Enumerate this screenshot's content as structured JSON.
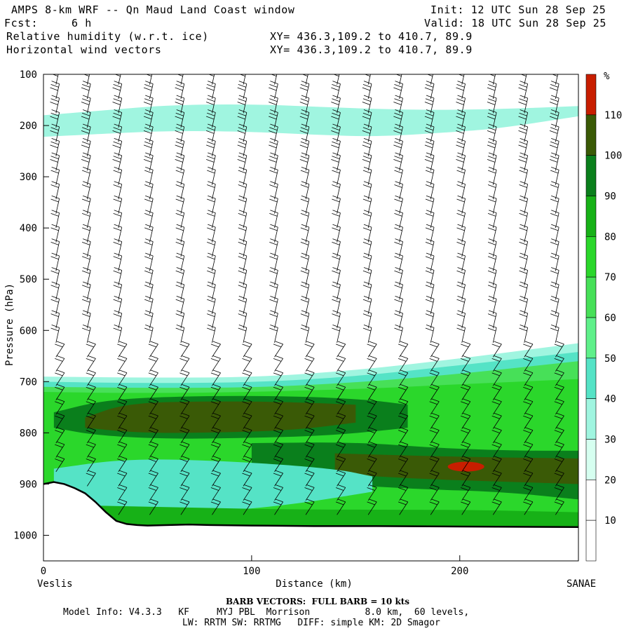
{
  "header": {
    "title": "AMPS 8-km WRF -- Qn Maud Land Coast window",
    "fcst_label": "Fcst:",
    "fcst_value": "6 h",
    "init": "Init: 12 UTC Sun 28 Sep 25",
    "valid": "Valid: 18 UTC Sun 28 Sep 25",
    "field1": "Relative humidity (w.r.t. ice)",
    "field2": "Horizontal wind vectors",
    "xy1": "XY= 436.3,109.2 to 410.7, 89.9",
    "xy2": "XY= 436.3,109.2 to 410.7, 89.9"
  },
  "footer": {
    "barb_note": "BARB VECTORS:  FULL BARB = 10 kts",
    "model_info_1": "Model Info: V4.3.3   KF     MYJ PBL  Morrison          8.0 km,  60 levels,",
    "model_info_2": "LW: RRTM SW: RRTMG   DIFF: simple KM: 2D Smagor"
  },
  "colors": {
    "rh_10_30": "#d6fff0",
    "rh_30_40": "#a0f5e0",
    "rh_40_50": "#55e3c6",
    "rh_50_60": "#5ff08a",
    "rh_60_70": "#47e058",
    "rh_70_80": "#2bd72b",
    "rh_80_90": "#17b117",
    "rh_90_100": "#0a7f1c",
    "rh_100_110": "#3a5a06",
    "rh_110_plus": "#c81e00",
    "terrain": "#000000",
    "barb": "#000000"
  },
  "chart_data": {
    "type": "heatmap",
    "title": "Relative humidity (w.r.t. ice) and horizontal wind vectors",
    "xlabel": "Distance (km)",
    "ylabel": "Pressure (hPa)",
    "xlim": [
      0,
      257
    ],
    "ylim": [
      1050,
      100
    ],
    "x_ticks": [
      0,
      100,
      200
    ],
    "y_ticks": [
      100,
      200,
      300,
      400,
      500,
      600,
      700,
      800,
      900,
      1000
    ],
    "x_endpoints": {
      "left": "Veslis",
      "right": "SANAE"
    },
    "colorbar": {
      "unit": "%",
      "labels": [
        10,
        20,
        30,
        40,
        50,
        60,
        70,
        80,
        90,
        100,
        110
      ]
    },
    "terrain_surface": {
      "x": [
        0,
        5,
        10,
        15,
        20,
        25,
        30,
        35,
        40,
        45,
        50,
        60,
        70,
        80,
        100,
        130,
        160,
        200,
        257
      ],
      "p": [
        900,
        896,
        900,
        908,
        918,
        935,
        955,
        972,
        978,
        980,
        981,
        980,
        979,
        980,
        981,
        982,
        982,
        983,
        984
      ]
    },
    "barb_columns_x": [
      6,
      21,
      36,
      51,
      66,
      81,
      96,
      111,
      126,
      141,
      156,
      171,
      186,
      201,
      216,
      231,
      246
    ],
    "rh_layers": [
      {
        "range": "30-40",
        "top_p": 180,
        "note": "upper thin band near 150-230 hPa"
      },
      {
        "range": "40-50",
        "top_p": 690,
        "note": "cloud-layer top"
      },
      {
        "range": "60-80",
        "top_p": 700,
        "note": "moist layer 700-980 hPa"
      },
      {
        "range": "90-110",
        "top_p": 760,
        "note": "core near 780 and 870 hPa"
      },
      {
        "range": "110+",
        "top_p": 860,
        "note": "small patch near 200 km, 865 hPa"
      }
    ]
  }
}
